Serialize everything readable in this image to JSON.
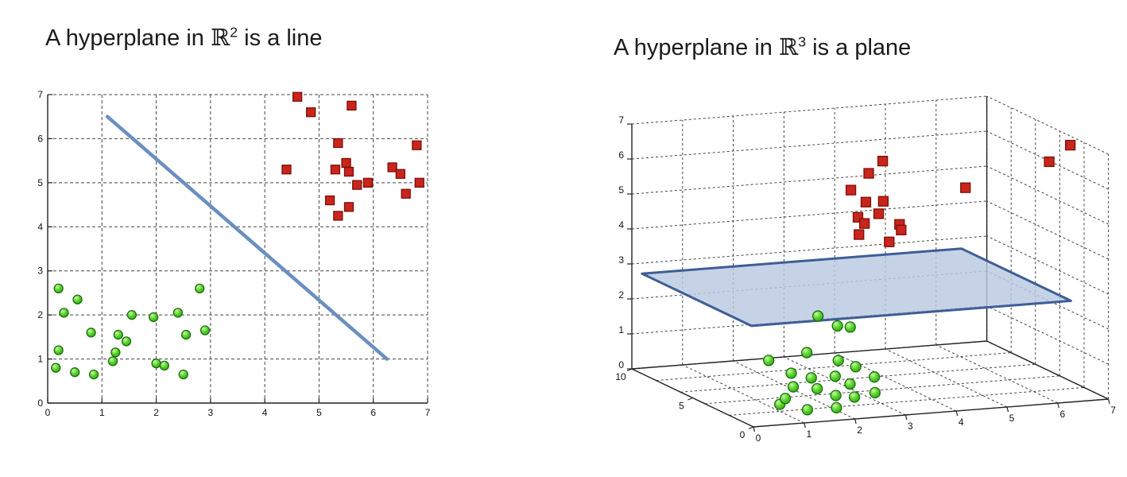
{
  "titles": {
    "left": {
      "prefix": "A hyperplane in ",
      "symbol": "ℝ",
      "exponent": "2",
      "suffix": " is a line"
    },
    "right": {
      "prefix": "A hyperplane in ",
      "symbol": "ℝ",
      "exponent": "3",
      "suffix": " is a plane"
    }
  },
  "colors": {
    "green": "#55d32b",
    "greenStroke": "#1d6e10",
    "red": "#c9251c",
    "redStroke": "#7c0f08",
    "line": "#6a8fc0",
    "planeFill": "#b9c9e2",
    "planeStroke": "#3e5e95",
    "grid": "#444444",
    "axis": "#222222"
  },
  "chart_data": [
    {
      "type": "scatter",
      "title": "A hyperplane in R^2 is a line",
      "xlabel": "",
      "ylabel": "",
      "xlim": [
        0,
        7
      ],
      "ylim": [
        0,
        7
      ],
      "xticks": [
        0,
        1,
        2,
        3,
        4,
        5,
        6,
        7
      ],
      "yticks": [
        0,
        1,
        2,
        3,
        4,
        5,
        6,
        7
      ],
      "grid": "dashed",
      "legend": "none",
      "series": [
        {
          "name": "class-green",
          "marker": "circle",
          "points": [
            [
              0.2,
              2.6
            ],
            [
              0.55,
              2.35
            ],
            [
              0.3,
              2.05
            ],
            [
              0.8,
              1.6
            ],
            [
              0.2,
              1.2
            ],
            [
              0.15,
              0.8
            ],
            [
              0.5,
              0.7
            ],
            [
              0.85,
              0.65
            ],
            [
              1.3,
              1.55
            ],
            [
              1.45,
              1.4
            ],
            [
              1.25,
              1.15
            ],
            [
              1.2,
              0.95
            ],
            [
              1.55,
              2.0
            ],
            [
              1.95,
              1.95
            ],
            [
              2.0,
              0.9
            ],
            [
              2.15,
              0.85
            ],
            [
              2.4,
              2.05
            ],
            [
              2.55,
              1.55
            ],
            [
              2.9,
              1.65
            ],
            [
              2.8,
              2.6
            ],
            [
              2.5,
              0.65
            ]
          ]
        },
        {
          "name": "class-red",
          "marker": "square",
          "points": [
            [
              4.6,
              6.95
            ],
            [
              4.85,
              6.6
            ],
            [
              5.6,
              6.75
            ],
            [
              5.35,
              5.9
            ],
            [
              6.8,
              5.85
            ],
            [
              4.4,
              5.3
            ],
            [
              5.5,
              5.45
            ],
            [
              5.55,
              5.25
            ],
            [
              6.35,
              5.35
            ],
            [
              6.5,
              5.2
            ],
            [
              5.9,
              5.0
            ],
            [
              5.7,
              4.95
            ],
            [
              5.3,
              5.3
            ],
            [
              5.2,
              4.6
            ],
            [
              5.55,
              4.45
            ],
            [
              6.6,
              4.75
            ],
            [
              5.35,
              4.25
            ],
            [
              6.85,
              5.0
            ]
          ]
        }
      ],
      "hyperplane_line": {
        "from": [
          1.1,
          6.5
        ],
        "to": [
          6.25,
          1.0
        ]
      }
    },
    {
      "type": "scatter3d",
      "title": "A hyperplane in R^3 is a plane",
      "xlim": [
        0,
        7
      ],
      "ylim": [
        0,
        10
      ],
      "zlim": [
        0,
        7
      ],
      "xticks": [
        0,
        1,
        2,
        3,
        4,
        5,
        6,
        7
      ],
      "yticks": [
        0,
        5,
        10
      ],
      "zticks": [
        0,
        1,
        2,
        3,
        4,
        5,
        6,
        7
      ],
      "ygrid": [
        0,
        2,
        4,
        6,
        8,
        10
      ],
      "grid": "dashed",
      "series": [
        {
          "name": "class-green",
          "marker": "sphere",
          "points": [
            [
              1.0,
              2.0,
              0.2
            ],
            [
              1.4,
              1.4,
              0.1
            ],
            [
              1.9,
              1.1,
              0.15
            ],
            [
              2.4,
              1.7,
              0.3
            ],
            [
              1.3,
              2.8,
              0.2
            ],
            [
              1.6,
              3.4,
              0.4
            ],
            [
              2.0,
              3.1,
              0.35
            ],
            [
              2.2,
              2.4,
              0.25
            ],
            [
              2.6,
              2.9,
              0.45
            ],
            [
              1.8,
              4.4,
              0.6
            ],
            [
              2.1,
              4.0,
              0.5
            ],
            [
              2.5,
              3.7,
              0.55
            ],
            [
              3.0,
              4.1,
              0.7
            ],
            [
              2.8,
              4.7,
              0.8
            ],
            [
              3.2,
              3.4,
              0.5
            ],
            [
              1.5,
              5.0,
              0.9
            ],
            [
              2.9,
              2.1,
              0.3
            ],
            [
              2.3,
              5.2,
              1.0
            ],
            [
              1.8,
              2.2,
              2.6
            ],
            [
              2.4,
              3.1,
              2.1
            ],
            [
              2.7,
              3.3,
              2.0
            ]
          ]
        },
        {
          "name": "class-red",
          "marker": "square",
          "points": [
            [
              3.5,
              6.0,
              4.6
            ],
            [
              3.8,
              6.6,
              4.9
            ],
            [
              4.0,
              6.0,
              5.0
            ],
            [
              4.2,
              5.5,
              4.4
            ],
            [
              3.6,
              7.0,
              5.2
            ],
            [
              4.0,
              7.2,
              5.6
            ],
            [
              3.4,
              5.5,
              4.2
            ],
            [
              4.4,
              6.2,
              4.1
            ],
            [
              3.9,
              5.1,
              4.0
            ],
            [
              4.1,
              6.8,
              4.5
            ],
            [
              3.7,
              6.3,
              4.35
            ],
            [
              5.5,
              5.5,
              5.3
            ],
            [
              4.3,
              7.3,
              5.9
            ],
            [
              6.8,
              2.3,
              6.9
            ],
            [
              6.6,
              3.2,
              6.3
            ]
          ]
        }
      ],
      "hyperplane_plane": {
        "z": 2.7,
        "xrange": [
          0.2,
          6.5
        ],
        "yrange": [
          1,
          10
        ]
      }
    }
  ]
}
